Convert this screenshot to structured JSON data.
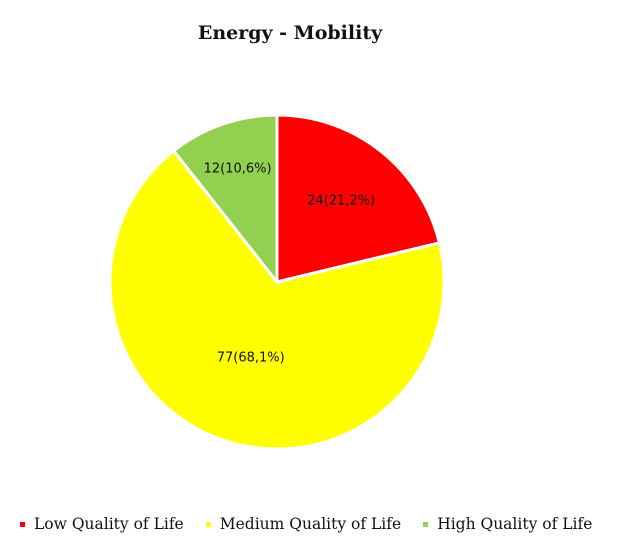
{
  "chart_data": {
    "type": "pie",
    "title": "Energy - Mobility",
    "slices": [
      {
        "name": "Low Quality of Life",
        "value": 24,
        "label": "24(21,2%)",
        "color": "#ff0000"
      },
      {
        "name": "Medium Quality of Life",
        "value": 77,
        "label": "77(68,1%)",
        "color": "#ffff00"
      },
      {
        "name": "High Quality of Life",
        "value": 12,
        "label": "12(10,6%)",
        "color": "#92d050"
      }
    ],
    "legend_position": "bottom"
  }
}
